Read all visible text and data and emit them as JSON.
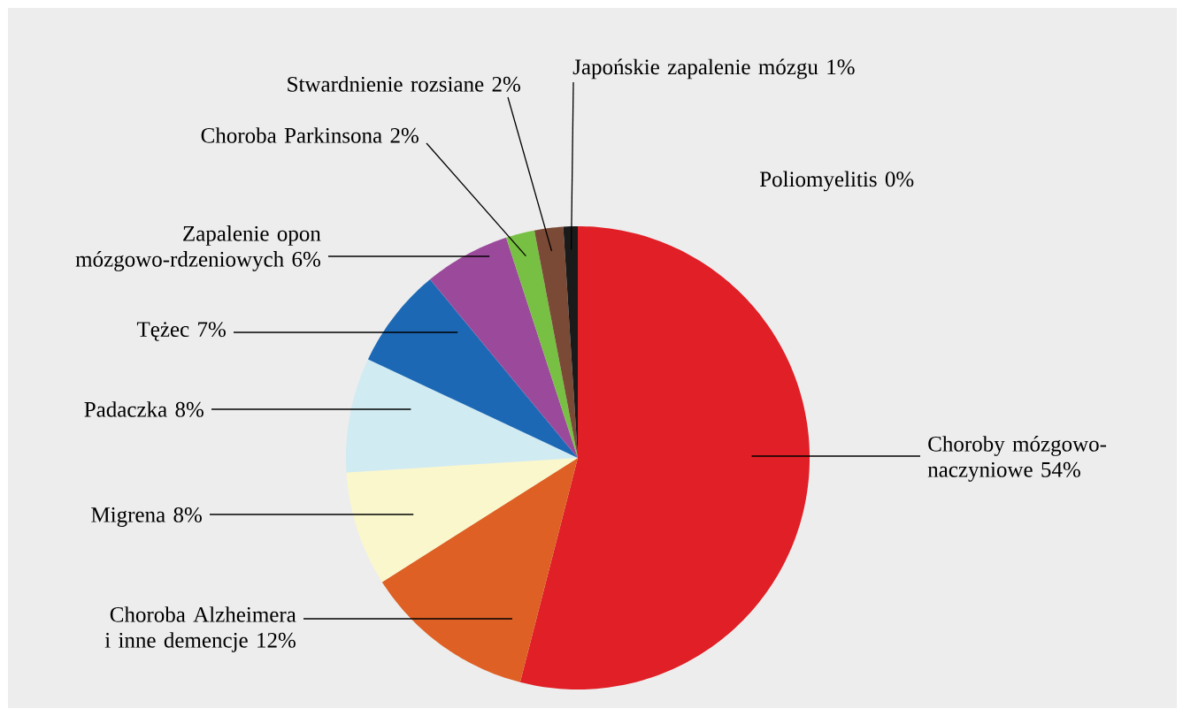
{
  "chart_data": {
    "type": "pie",
    "categories": [
      "Choroby mózgowo-naczyniowe",
      "Choroba Alzheimera i inne demencje",
      "Migrena",
      "Padaczka",
      "Tężec",
      "Zapalenie opon mózgowo-rdzeniowych",
      "Choroba Parkinsona",
      "Stwardnienie rozsiane",
      "Japońskie zapalenie mózgu",
      "Poliomyelitis"
    ],
    "values": [
      54,
      12,
      8,
      8,
      7,
      6,
      2,
      2,
      1,
      0
    ],
    "value_labels": [
      "54%",
      "12%",
      "8%",
      "8%",
      "7%",
      "6%",
      "2%",
      "2%",
      "1%",
      "0%"
    ],
    "colors": [
      "#e01f26",
      "#de6024",
      "#faf7cc",
      "#d0ebf2",
      "#1c68b5",
      "#9b4a9b",
      "#78c043",
      "#7a4a36",
      "#1a1a1a",
      "#000000"
    ]
  }
}
